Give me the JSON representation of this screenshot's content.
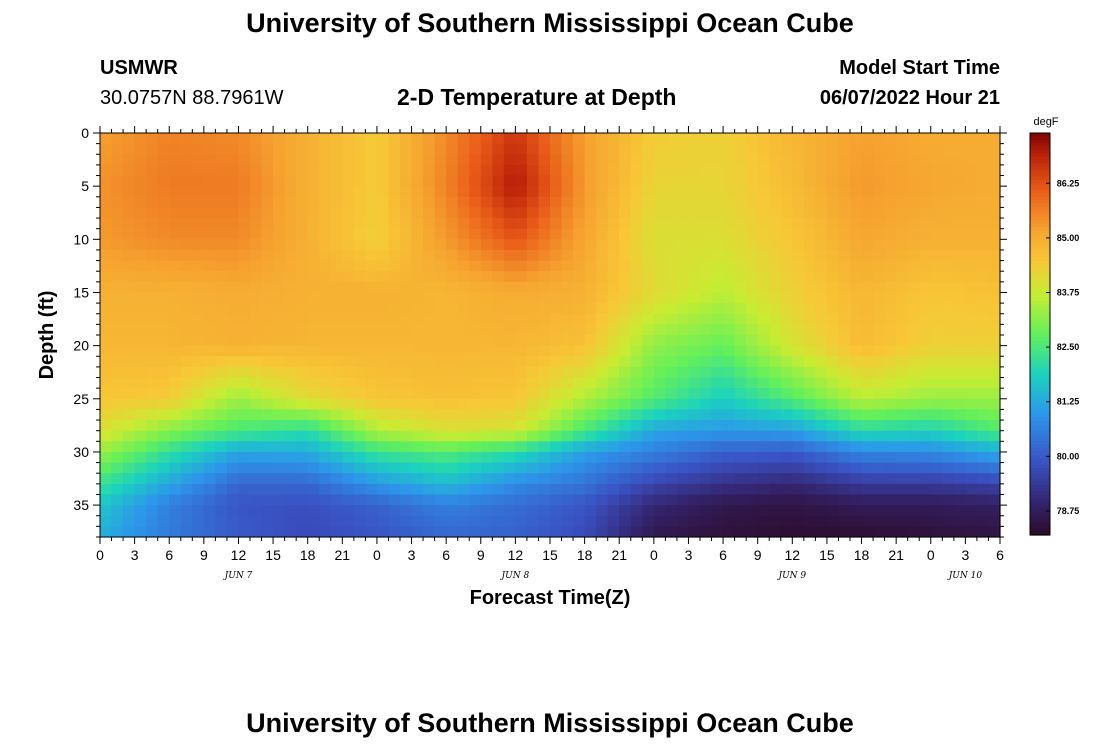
{
  "page": {
    "title": "University of Southern Mississippi Ocean Cube",
    "footer_title": "University of Southern Mississippi Ocean Cube",
    "station": "USMWR",
    "coords": "30.0757N  88.7961W",
    "model_start_label": "Model Start Time",
    "model_start_value": "06/07/2022 Hour 21"
  },
  "chart_data": {
    "type": "heatmap",
    "title": "2-D Temperature at Depth",
    "xlabel": "Forecast Time(Z)",
    "ylabel": "Depth (ft)",
    "x_range_hours": [
      0,
      78
    ],
    "y_range_ft": [
      0,
      38
    ],
    "x_tick_labels": [
      "0",
      "3",
      "6",
      "9",
      "12",
      "15",
      "18",
      "21",
      "0",
      "3",
      "6",
      "9",
      "12",
      "15",
      "18",
      "21",
      "0",
      "3",
      "6",
      "9",
      "12",
      "15",
      "18",
      "21",
      "0",
      "3",
      "6"
    ],
    "y_ticks": [
      0,
      5,
      10,
      15,
      20,
      25,
      30,
      35
    ],
    "date_labels": [
      {
        "text": "JUN 7",
        "hour": 12
      },
      {
        "text": "JUN 8",
        "hour": 36
      },
      {
        "text": "JUN 9",
        "hour": 60
      },
      {
        "text": "JUN 10",
        "hour": 75
      }
    ],
    "colorbar": {
      "unit": "degF",
      "range": [
        78.2,
        87.4
      ],
      "ticks": [
        "86.25",
        "85.00",
        "83.75",
        "82.50",
        "81.25",
        "80.00",
        "78.75"
      ],
      "tick_values": [
        86.25,
        85.0,
        83.75,
        82.5,
        81.25,
        80.0,
        78.75
      ]
    },
    "time_hours": [
      0,
      6,
      12,
      18,
      24,
      30,
      36,
      42,
      48,
      54,
      60,
      66,
      72,
      78
    ],
    "depth_ft": [
      0,
      5,
      10,
      15,
      20,
      25,
      28,
      30,
      33,
      35,
      38
    ],
    "temperature_degF": [
      [
        85.2,
        85.6,
        85.5,
        84.9,
        84.4,
        85.5,
        86.6,
        85.2,
        84.4,
        84.3,
        84.8,
        85.2,
        85.0,
        85.0
      ],
      [
        85.4,
        85.7,
        85.7,
        84.9,
        84.4,
        85.6,
        87.0,
        85.3,
        84.2,
        84.2,
        84.7,
        85.3,
        85.1,
        85.0
      ],
      [
        85.3,
        85.5,
        85.5,
        84.9,
        84.3,
        85.3,
        86.2,
        85.1,
        84.0,
        84.0,
        84.5,
        85.1,
        84.9,
        84.9
      ],
      [
        84.9,
        84.9,
        85.0,
        84.9,
        84.9,
        84.8,
        85.0,
        84.9,
        84.1,
        83.6,
        84.3,
        84.8,
        84.5,
        84.6
      ],
      [
        84.8,
        84.8,
        84.9,
        84.8,
        84.8,
        84.8,
        84.8,
        84.6,
        83.2,
        82.8,
        83.9,
        84.7,
        84.3,
        84.3
      ],
      [
        84.5,
        84.4,
        83.3,
        84.1,
        84.5,
        84.6,
        84.5,
        83.5,
        82.6,
        81.8,
        82.6,
        83.6,
        83.3,
        83.3
      ],
      [
        84.0,
        83.1,
        82.5,
        82.1,
        83.5,
        84.0,
        83.9,
        82.5,
        81.2,
        81.0,
        81.1,
        82.1,
        81.9,
        82.6
      ],
      [
        83.3,
        82.2,
        81.2,
        81.3,
        82.3,
        82.6,
        82.1,
        81.1,
        80.6,
        80.1,
        80.0,
        80.7,
        80.8,
        81.3
      ],
      [
        82.3,
        81.2,
        80.2,
        80.2,
        81.0,
        81.5,
        80.8,
        80.4,
        79.6,
        79.2,
        79.0,
        79.4,
        79.4,
        79.6
      ],
      [
        81.7,
        80.6,
        79.9,
        79.8,
        80.1,
        80.6,
        80.3,
        79.9,
        79.0,
        78.6,
        78.5,
        78.7,
        78.7,
        78.8
      ],
      [
        81.3,
        80.5,
        80.0,
        79.7,
        79.9,
        80.2,
        80.1,
        79.7,
        78.6,
        78.4,
        78.3,
        78.3,
        78.4,
        78.5
      ]
    ]
  }
}
